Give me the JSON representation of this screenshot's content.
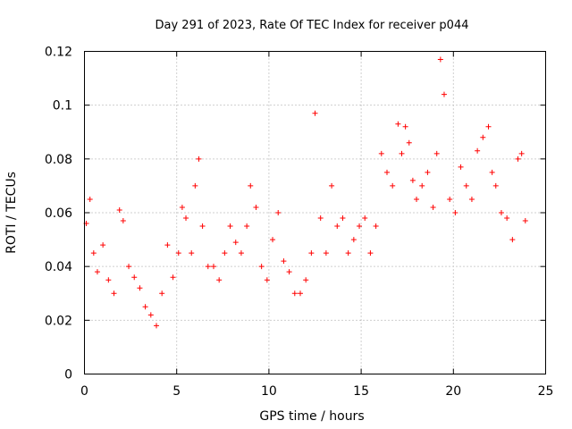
{
  "chart_data": {
    "type": "scatter",
    "title": "Day 291 of 2023, Rate Of TEC Index for receiver p044",
    "xlabel": "GPS time / hours",
    "ylabel": "ROTI / TECUs",
    "xlim": [
      0,
      25
    ],
    "ylim": [
      0,
      0.12
    ],
    "x_ticks": [
      0,
      5,
      10,
      15,
      20,
      25
    ],
    "y_ticks": [
      0,
      0.02,
      0.04,
      0.06,
      0.08,
      0.1,
      0.12
    ],
    "x_tick_labels": [
      "0",
      "5",
      "10",
      "15",
      "20",
      "25"
    ],
    "y_tick_labels": [
      "0",
      "0.02",
      "0.04",
      "0.06",
      "0.08",
      "0.1",
      "0.12"
    ],
    "grid": true,
    "marker": "+",
    "color": "#ff0000",
    "series": [
      {
        "x": [
          0.1,
          0.3,
          0.5,
          0.7,
          1.0,
          1.3,
          1.6,
          1.9,
          2.1,
          2.4,
          2.7,
          3.0,
          3.3,
          3.6,
          3.9,
          4.2,
          4.5,
          4.8,
          5.1,
          5.3,
          5.5,
          5.8,
          6.0,
          6.2,
          6.4,
          6.7,
          7.0,
          7.3,
          7.6,
          7.9,
          8.2,
          8.5,
          8.8,
          9.0,
          9.3,
          9.6,
          9.9,
          10.2,
          10.5,
          10.8,
          11.1,
          11.4,
          11.7,
          12.0,
          12.3,
          12.5,
          12.8,
          13.1,
          13.4,
          13.7,
          14.0,
          14.3,
          14.6,
          14.9,
          15.2,
          15.5,
          15.8,
          16.1,
          16.4,
          16.7,
          17.0,
          17.2,
          17.4,
          17.6,
          17.8,
          18.0,
          18.3,
          18.6,
          18.9,
          19.1,
          19.3,
          19.5,
          19.8,
          20.1,
          20.4,
          20.7,
          21.0,
          21.3,
          21.6,
          21.9,
          22.1,
          22.3,
          22.6,
          22.9,
          23.2,
          23.5,
          23.7,
          23.9
        ],
        "y": [
          0.056,
          0.065,
          0.045,
          0.038,
          0.048,
          0.035,
          0.03,
          0.061,
          0.057,
          0.04,
          0.036,
          0.032,
          0.025,
          0.022,
          0.018,
          0.03,
          0.048,
          0.036,
          0.045,
          0.062,
          0.058,
          0.045,
          0.07,
          0.08,
          0.055,
          0.04,
          0.04,
          0.035,
          0.045,
          0.055,
          0.049,
          0.045,
          0.055,
          0.07,
          0.062,
          0.04,
          0.035,
          0.05,
          0.06,
          0.042,
          0.038,
          0.03,
          0.03,
          0.035,
          0.045,
          0.097,
          0.058,
          0.045,
          0.07,
          0.055,
          0.058,
          0.045,
          0.05,
          0.055,
          0.058,
          0.045,
          0.055,
          0.082,
          0.075,
          0.07,
          0.093,
          0.082,
          0.092,
          0.086,
          0.072,
          0.065,
          0.07,
          0.075,
          0.062,
          0.082,
          0.117,
          0.104,
          0.065,
          0.06,
          0.077,
          0.07,
          0.065,
          0.083,
          0.088,
          0.092,
          0.075,
          0.07,
          0.06,
          0.058,
          0.05,
          0.08,
          0.082,
          0.057
        ]
      }
    ]
  }
}
